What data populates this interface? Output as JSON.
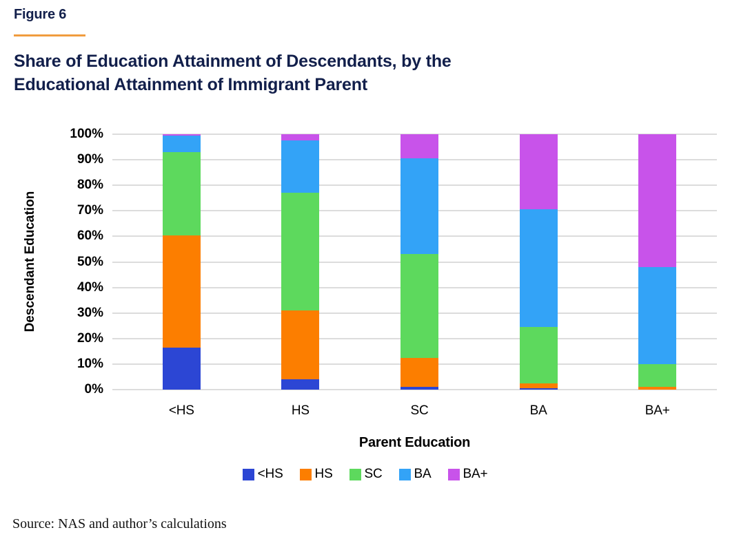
{
  "figure_label": "Figure 6",
  "title": "Share of Education Attainment of Descendants, by the Educational Attainment of Immigrant Parent",
  "source": "Source: NAS and author’s calculations",
  "theme": {
    "navy": "#121F4B",
    "rule_orange": "#F09C3E",
    "gridline": "#DCDCDC"
  },
  "chart_data": {
    "type": "bar",
    "stacked": true,
    "percent_stacked": true,
    "title": "Share of Education Attainment of Descendants, by the Educational Attainment of Immigrant Parent",
    "xlabel": "Parent Education",
    "ylabel": "Descendant Education",
    "categories": [
      "<HS",
      "HS",
      "SC",
      "BA",
      "BA+"
    ],
    "series": [
      {
        "name": "<HS",
        "color": "#2C46D4",
        "values": [
          16.5,
          4.0,
          1.0,
          0.5,
          0.0
        ]
      },
      {
        "name": "HS",
        "color": "#FC7E00",
        "values": [
          44.0,
          27.0,
          11.5,
          2.0,
          1.0
        ]
      },
      {
        "name": "SC",
        "color": "#5DD95D",
        "values": [
          32.5,
          46.0,
          40.5,
          22.0,
          9.0
        ]
      },
      {
        "name": "BA",
        "color": "#33A3F7",
        "values": [
          6.5,
          20.5,
          37.5,
          46.0,
          38.0
        ]
      },
      {
        "name": "BA+",
        "color": "#C853EA",
        "values": [
          0.5,
          2.5,
          9.5,
          29.5,
          52.0
        ]
      }
    ],
    "ylim": [
      0,
      100
    ],
    "yticks": [
      "0%",
      "10%",
      "20%",
      "30%",
      "40%",
      "50%",
      "60%",
      "70%",
      "80%",
      "90%",
      "100%"
    ],
    "grid": true,
    "legend_position": "bottom"
  }
}
